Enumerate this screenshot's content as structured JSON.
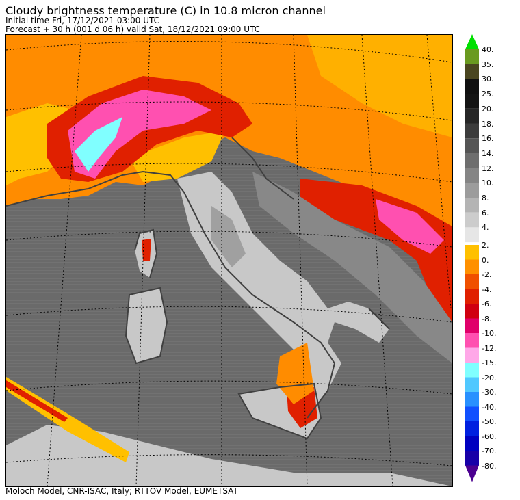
{
  "header": {
    "title": "Cloudy brightness temperature (C) in   10.8 micron channel",
    "initial_time": "Initial time  Fri, 17/12/2021  03:00 UTC",
    "forecast": "Forecast  +  30 h  (001 d 06 h)  valid Sat, 18/12/2021 09:00 UTC"
  },
  "footer": {
    "credits": "Moloch Model, CNR-ISAC, Italy; RTTOV Model, EUMETSAT"
  },
  "colorbar": {
    "top_arrow_color": "#00e000",
    "bottom_arrow_color": "#4b0090",
    "warm": [
      {
        "label": "40.",
        "color": "#6a9a20"
      },
      {
        "label": "35.",
        "color": "#4a4620"
      },
      {
        "label": "30.",
        "color": "#101010"
      },
      {
        "label": "25.",
        "color": "#141414"
      },
      {
        "label": "20.",
        "color": "#262626"
      },
      {
        "label": "18.",
        "color": "#3c3c3c"
      },
      {
        "label": "16.",
        "color": "#555555"
      },
      {
        "label": "14.",
        "color": "#6e6e6e"
      },
      {
        "label": "12.",
        "color": "#858585"
      },
      {
        "label": "10.",
        "color": "#9c9c9c"
      },
      {
        "label": "8.",
        "color": "#b4b4b4"
      },
      {
        "label": "6.",
        "color": "#cccccc"
      },
      {
        "label": "4.",
        "color": "#e6e6e6"
      }
    ],
    "cold": [
      {
        "label": "2.",
        "color": "#ffc000"
      },
      {
        "label": "0.",
        "color": "#ff9000"
      },
      {
        "label": "-2.",
        "color": "#f05000"
      },
      {
        "label": "-4.",
        "color": "#e02000"
      },
      {
        "label": "-6.",
        "color": "#d00010"
      },
      {
        "label": "-8.",
        "color": "#e0006a"
      },
      {
        "label": "-10.",
        "color": "#ff50b0"
      },
      {
        "label": "-12.",
        "color": "#ffa8e8"
      },
      {
        "label": "-15.",
        "color": "#80ffff"
      },
      {
        "label": "-20.",
        "color": "#50c8ff"
      },
      {
        "label": "-30.",
        "color": "#2890ff"
      },
      {
        "label": "-40.",
        "color": "#1050ff"
      },
      {
        "label": "-50.",
        "color": "#0020e0"
      },
      {
        "label": "-60.",
        "color": "#0000c0"
      },
      {
        "label": "-70.",
        "color": "#1800a8"
      },
      {
        "label": "-80.",
        "color": ""
      }
    ]
  },
  "map_colors": {
    "sea": "#686868",
    "land_light": "#c8c8c8",
    "land_mid": "#a8a8a8",
    "cloud_orange": "#ff8c00",
    "cloud_yellow": "#ffc000",
    "cloud_red": "#e02000",
    "cloud_magenta": "#ff50b0",
    "cloud_cyan": "#80ffff"
  }
}
